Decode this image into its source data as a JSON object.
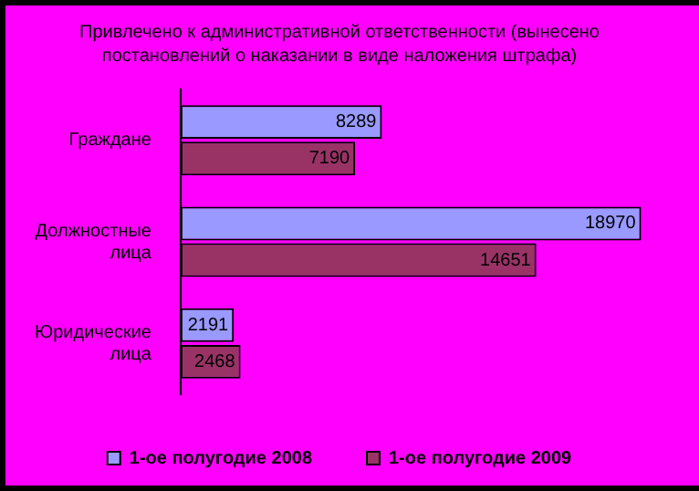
{
  "chart_data": {
    "type": "bar",
    "orientation": "horizontal",
    "title": "Привлечено к административной ответственности (вынесено постановлений о наказании в виде наложения штрафа)",
    "categories": [
      "Граждане",
      "Должностные лица",
      "Юридические лица"
    ],
    "series": [
      {
        "name": "1-ое полугодие 2008",
        "color": "#9999ff",
        "values": [
          8289,
          18970,
          2191
        ]
      },
      {
        "name": "1-ое полугодие 2009",
        "color": "#993366",
        "values": [
          7190,
          14651,
          2468
        ]
      }
    ],
    "data_labels": true,
    "legend": "bottom"
  }
}
